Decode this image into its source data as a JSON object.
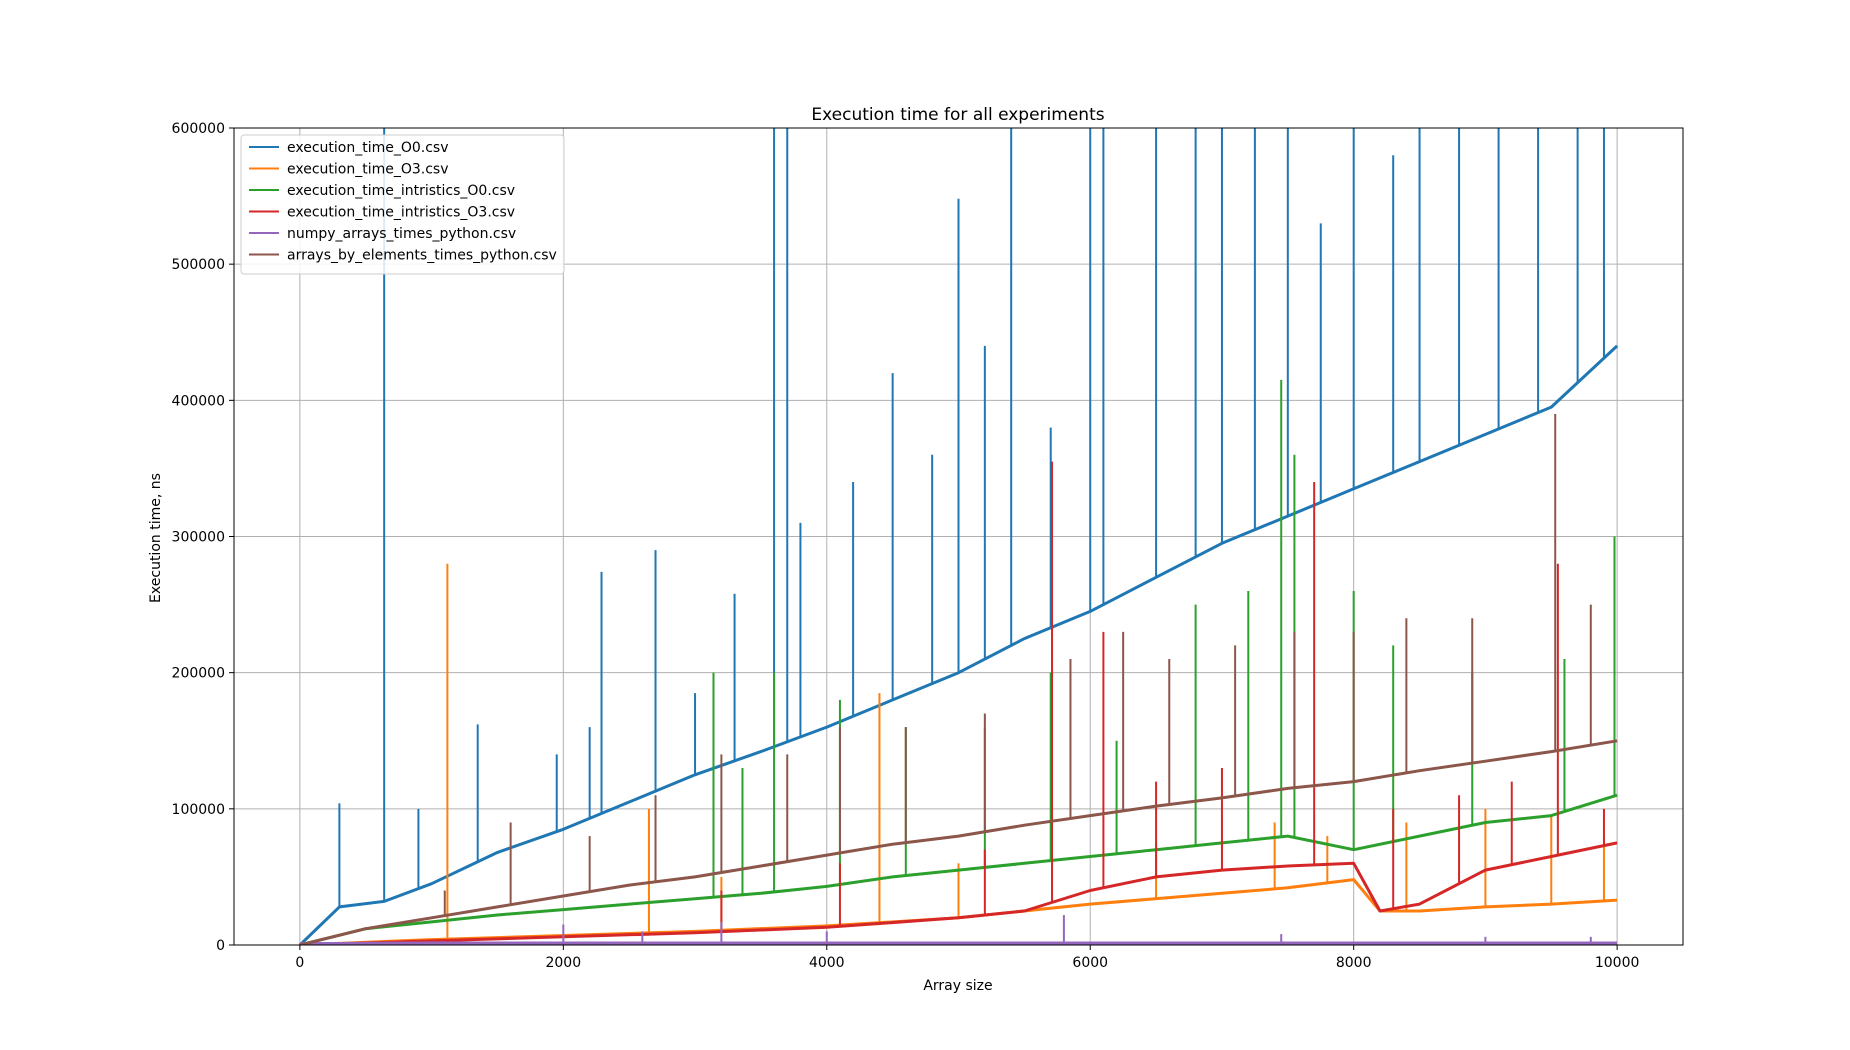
{
  "chart_data": {
    "type": "line",
    "title": "Execution time for all experiments",
    "xlabel": "Array size",
    "ylabel": "Execution time, ns",
    "xlim": [
      -500,
      10500
    ],
    "ylim": [
      0,
      600000
    ],
    "x_ticks": [
      0,
      2000,
      4000,
      6000,
      8000,
      10000
    ],
    "y_ticks": [
      0,
      100000,
      200000,
      300000,
      400000,
      500000,
      600000
    ],
    "grid": true,
    "legend_position": "upper-left",
    "series": [
      {
        "name": "execution_time_O0.csv",
        "color": "#1f77b4",
        "x": [
          0,
          300,
          640,
          1000,
          1500,
          2000,
          2500,
          3000,
          3500,
          4000,
          4500,
          5000,
          5500,
          6000,
          6500,
          7000,
          7500,
          8000,
          8500,
          9000,
          9500,
          10000
        ],
        "y": [
          0,
          28000,
          32000,
          45000,
          68000,
          85000,
          105000,
          125000,
          142000,
          160000,
          180000,
          200000,
          225000,
          245000,
          270000,
          295000,
          315000,
          335000,
          355000,
          375000,
          395000,
          440000
        ],
        "spikes": [
          [
            300,
            104000
          ],
          [
            640,
            600000
          ],
          [
            900,
            100000
          ],
          [
            1350,
            162000
          ],
          [
            1950,
            140000
          ],
          [
            2200,
            160000
          ],
          [
            2290,
            274000
          ],
          [
            2700,
            290000
          ],
          [
            3000,
            185000
          ],
          [
            3300,
            258000
          ],
          [
            3600,
            600000
          ],
          [
            3700,
            600000
          ],
          [
            3800,
            310000
          ],
          [
            4200,
            340000
          ],
          [
            4500,
            420000
          ],
          [
            4800,
            360000
          ],
          [
            5000,
            548000
          ],
          [
            5200,
            440000
          ],
          [
            5400,
            600000
          ],
          [
            5700,
            380000
          ],
          [
            6000,
            600000
          ],
          [
            6100,
            600000
          ],
          [
            6500,
            600000
          ],
          [
            6800,
            600000
          ],
          [
            7000,
            600000
          ],
          [
            7250,
            600000
          ],
          [
            7500,
            600000
          ],
          [
            7750,
            530000
          ],
          [
            8000,
            600000
          ],
          [
            8300,
            580000
          ],
          [
            8500,
            600000
          ],
          [
            8800,
            600000
          ],
          [
            9100,
            600000
          ],
          [
            9400,
            600000
          ],
          [
            9700,
            600000
          ],
          [
            9900,
            600000
          ]
        ]
      },
      {
        "name": "execution_time_O3.csv",
        "color": "#ff7f0e",
        "x": [
          0,
          1000,
          2000,
          3000,
          4000,
          5000,
          6000,
          7000,
          7500,
          8000,
          8200,
          8500,
          9000,
          9500,
          10000
        ],
        "y": [
          0,
          4000,
          7000,
          10000,
          14000,
          20000,
          30000,
          38000,
          42000,
          48000,
          25000,
          25000,
          28000,
          30000,
          33000
        ],
        "spikes": [
          [
            1120,
            280000
          ],
          [
            2650,
            100000
          ],
          [
            3200,
            50000
          ],
          [
            4400,
            185000
          ],
          [
            5000,
            60000
          ],
          [
            6500,
            75000
          ],
          [
            7400,
            90000
          ],
          [
            7800,
            80000
          ],
          [
            8400,
            90000
          ],
          [
            9000,
            100000
          ],
          [
            9500,
            95000
          ],
          [
            9900,
            80000
          ]
        ]
      },
      {
        "name": "execution_time_intristics_O0.csv",
        "color": "#2ca02c",
        "x": [
          0,
          500,
          1000,
          1500,
          2000,
          2500,
          3000,
          3500,
          4000,
          4500,
          5000,
          5500,
          6000,
          6500,
          7000,
          7500,
          8000,
          8500,
          9000,
          9500,
          10000
        ],
        "y": [
          0,
          12000,
          17000,
          22000,
          26000,
          30000,
          34000,
          38000,
          43000,
          50000,
          55000,
          60000,
          65000,
          70000,
          75000,
          80000,
          70000,
          80000,
          90000,
          95000,
          110000
        ],
        "spikes": [
          [
            3140,
            200000
          ],
          [
            3360,
            130000
          ],
          [
            3600,
            200000
          ],
          [
            4100,
            180000
          ],
          [
            4600,
            160000
          ],
          [
            5200,
            160000
          ],
          [
            5700,
            200000
          ],
          [
            6200,
            150000
          ],
          [
            6800,
            250000
          ],
          [
            7200,
            260000
          ],
          [
            7450,
            415000
          ],
          [
            7550,
            360000
          ],
          [
            8000,
            260000
          ],
          [
            8300,
            220000
          ],
          [
            8900,
            200000
          ],
          [
            9600,
            210000
          ],
          [
            9980,
            300000
          ]
        ]
      },
      {
        "name": "execution_time_intristics_O3.csv",
        "color": "#d62728",
        "x": [
          0,
          1000,
          2000,
          3000,
          4000,
          5000,
          5500,
          6000,
          6500,
          7000,
          7500,
          8000,
          8200,
          8500,
          9000,
          9500,
          10000
        ],
        "y": [
          0,
          3000,
          6000,
          9000,
          13000,
          20000,
          25000,
          40000,
          50000,
          55000,
          58000,
          60000,
          25000,
          30000,
          55000,
          65000,
          75000
        ],
        "spikes": [
          [
            3200,
            40000
          ],
          [
            4100,
            60000
          ],
          [
            5200,
            70000
          ],
          [
            5710,
            355000
          ],
          [
            6100,
            230000
          ],
          [
            6500,
            120000
          ],
          [
            7000,
            130000
          ],
          [
            7700,
            340000
          ],
          [
            8300,
            100000
          ],
          [
            8800,
            110000
          ],
          [
            9200,
            120000
          ],
          [
            9550,
            280000
          ],
          [
            9900,
            100000
          ]
        ]
      },
      {
        "name": "numpy_arrays_times_python.csv",
        "color": "#9467bd",
        "x": [
          0,
          1000,
          2000,
          3000,
          4000,
          5000,
          5800,
          5850,
          6000,
          7000,
          8000,
          9000,
          10000
        ],
        "y": [
          1000,
          1500,
          1500,
          1500,
          1500,
          1500,
          1500,
          1500,
          1500,
          1500,
          1500,
          1500,
          1500
        ],
        "spikes": [
          [
            2000,
            15000
          ],
          [
            2600,
            10000
          ],
          [
            3200,
            17000
          ],
          [
            4000,
            10000
          ],
          [
            5800,
            22000
          ],
          [
            7450,
            8000
          ],
          [
            9000,
            6000
          ],
          [
            9800,
            6000
          ]
        ]
      },
      {
        "name": "arrays_by_elements_times_python.csv",
        "color": "#8c564b",
        "x": [
          0,
          500,
          1000,
          1500,
          2000,
          2500,
          3000,
          3500,
          4000,
          4500,
          5000,
          5500,
          6000,
          6500,
          7000,
          7500,
          8000,
          8500,
          9000,
          9500,
          10000
        ],
        "y": [
          0,
          12000,
          20000,
          28000,
          36000,
          44000,
          50000,
          58000,
          66000,
          74000,
          80000,
          88000,
          95000,
          102000,
          108000,
          115000,
          120000,
          128000,
          135000,
          142000,
          150000
        ],
        "spikes": [
          [
            1100,
            40000
          ],
          [
            1600,
            90000
          ],
          [
            2200,
            80000
          ],
          [
            2700,
            110000
          ],
          [
            3200,
            140000
          ],
          [
            3700,
            140000
          ],
          [
            4100,
            160000
          ],
          [
            4600,
            160000
          ],
          [
            5200,
            170000
          ],
          [
            5850,
            210000
          ],
          [
            6250,
            230000
          ],
          [
            6600,
            210000
          ],
          [
            7100,
            220000
          ],
          [
            7550,
            230000
          ],
          [
            8000,
            230000
          ],
          [
            8400,
            240000
          ],
          [
            8900,
            240000
          ],
          [
            9530,
            390000
          ],
          [
            9800,
            250000
          ]
        ]
      }
    ]
  }
}
